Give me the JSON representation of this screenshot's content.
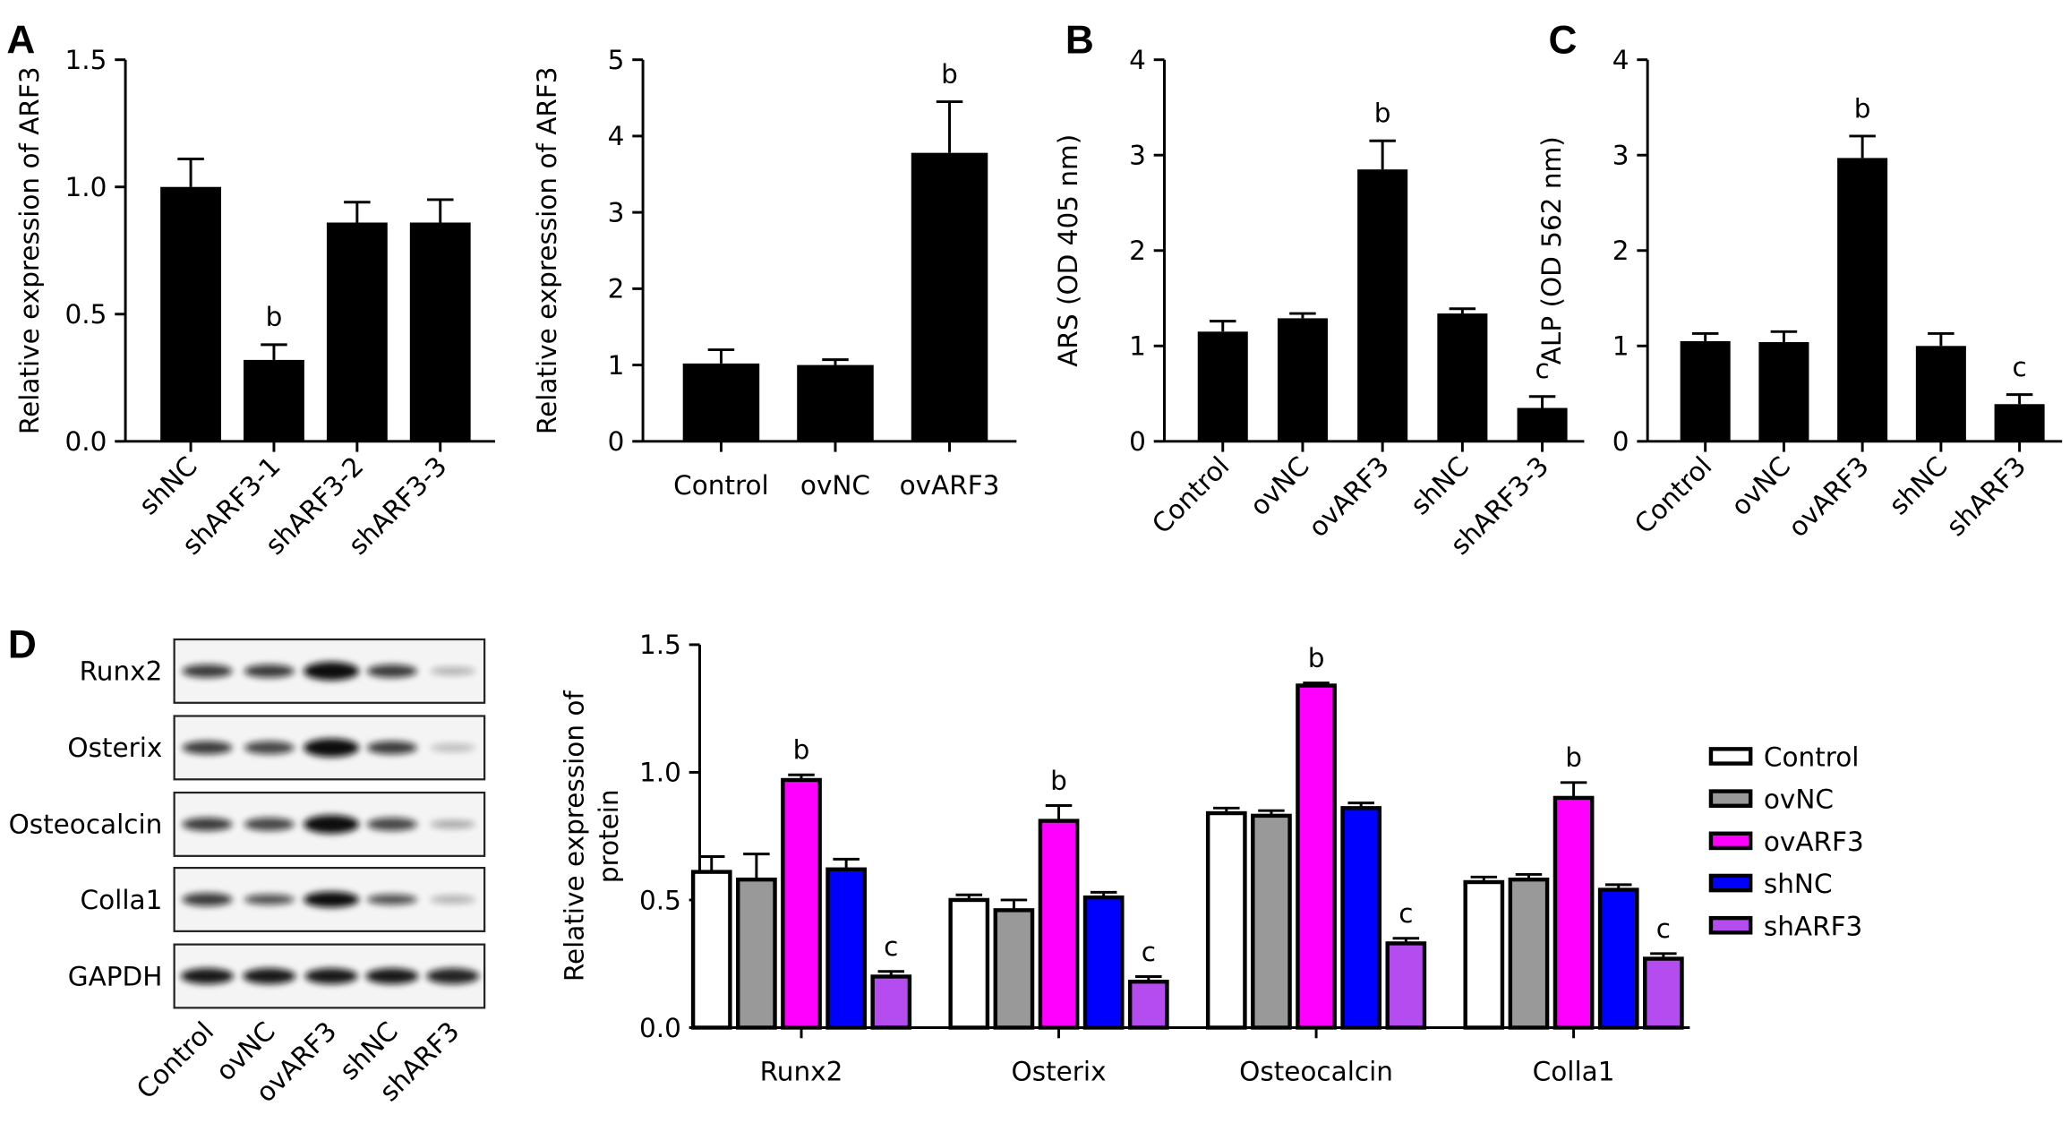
{
  "chart_data": [
    {
      "type": "bar",
      "panel": "A",
      "ylabel": "Relative expression of ARF3",
      "categories": [
        "shNC",
        "shARF3-1",
        "shARF3-2",
        "shARF3-3"
      ],
      "values": [
        1.0,
        0.32,
        0.86,
        0.86
      ],
      "errors": [
        0.11,
        0.06,
        0.08,
        0.09
      ],
      "letters": [
        null,
        "b",
        null,
        null
      ],
      "color": "#000000",
      "ylim": [
        0,
        1.5
      ],
      "yticks": [
        {
          "value": 0,
          "label": "0.0"
        },
        0.5,
        {
          "value": 1,
          "label": "1.0"
        },
        1.5
      ]
    },
    {
      "type": "bar",
      "ylabel": "Relative expression of ARF3",
      "categories": [
        "Control",
        "ovNC",
        "ovARF3"
      ],
      "values": [
        1.02,
        1.0,
        3.78
      ],
      "errors": [
        0.18,
        0.07,
        0.67
      ],
      "letters": [
        null,
        null,
        "b"
      ],
      "color": "#000000",
      "ylim": [
        0,
        5
      ],
      "yticks": [
        0,
        1,
        2,
        3,
        4,
        5
      ]
    },
    {
      "type": "bar",
      "panel": "B",
      "ylabel": "ARS (OD 405 nm)",
      "categories": [
        "Control",
        "ovNC",
        "ovARF3",
        "shNC",
        "shARF3-3"
      ],
      "values": [
        1.15,
        1.29,
        2.85,
        1.34,
        0.35
      ],
      "errors": [
        0.11,
        0.05,
        0.3,
        0.05,
        0.12
      ],
      "letters": [
        null,
        null,
        "b",
        null,
        "c"
      ],
      "color": "#000000",
      "ylim": [
        0,
        4
      ],
      "yticks": [
        0,
        1,
        2,
        3,
        4
      ]
    },
    {
      "type": "bar",
      "panel": "C",
      "ylabel": "ALP (OD 562 nm)",
      "categories": [
        "Control",
        "ovNC",
        "ovARF3",
        "shNC",
        "shARF3"
      ],
      "values": [
        1.05,
        1.04,
        2.97,
        1.0,
        0.39
      ],
      "errors": [
        0.08,
        0.11,
        0.23,
        0.13,
        0.1
      ],
      "letters": [
        null,
        null,
        "b",
        null,
        "c"
      ],
      "color": "#000000",
      "ylim": [
        0,
        4
      ],
      "yticks": [
        0,
        1,
        2,
        3,
        4
      ]
    },
    {
      "type": "grouped-bar",
      "ylabel": [
        "Relative expression of",
        "protein"
      ],
      "categories": [
        "Runx2",
        "Osterix",
        "Osteocalcin",
        "Colla1"
      ],
      "series": [
        {
          "name": "Control",
          "color": "#ffffff",
          "values": [
            0.61,
            0.5,
            0.84,
            0.57
          ],
          "errors": [
            0.06,
            0.02,
            0.02,
            0.02
          ],
          "letters": [
            null,
            null,
            null,
            null
          ]
        },
        {
          "name": "ovNC",
          "color": "#999999",
          "values": [
            0.58,
            0.46,
            0.83,
            0.58
          ],
          "errors": [
            0.1,
            0.04,
            0.02,
            0.02
          ],
          "letters": [
            null,
            null,
            null,
            null
          ]
        },
        {
          "name": "ovARF3",
          "color": "#ff00ff",
          "values": [
            0.97,
            0.81,
            1.34,
            0.9
          ],
          "errors": [
            0.02,
            0.06,
            0.01,
            0.06
          ],
          "letters": [
            "b",
            "b",
            "b",
            "b"
          ]
        },
        {
          "name": "shNC",
          "color": "#0000ff",
          "values": [
            0.62,
            0.51,
            0.86,
            0.54
          ],
          "errors": [
            0.04,
            0.02,
            0.02,
            0.02
          ],
          "letters": [
            null,
            null,
            null,
            null
          ]
        },
        {
          "name": "shARF3",
          "color": "#b44cf0",
          "values": [
            0.2,
            0.18,
            0.33,
            0.27
          ],
          "errors": [
            0.02,
            0.02,
            0.02,
            0.02
          ],
          "letters": [
            "c",
            "c",
            "c",
            "c"
          ]
        }
      ],
      "ylim": [
        0,
        1.5
      ],
      "yticks": [
        {
          "value": 0,
          "label": "0.0"
        },
        0.5,
        {
          "value": 1,
          "label": "1.0"
        },
        1.5
      ]
    }
  ],
  "blot": {
    "panel": "D",
    "rows": [
      "Runx2",
      "Osterix",
      "Osteocalcin",
      "Colla1",
      "GAPDH"
    ],
    "lanes": [
      "Control",
      "ovNC",
      "ovARF3",
      "shNC",
      "shARF3"
    ]
  }
}
